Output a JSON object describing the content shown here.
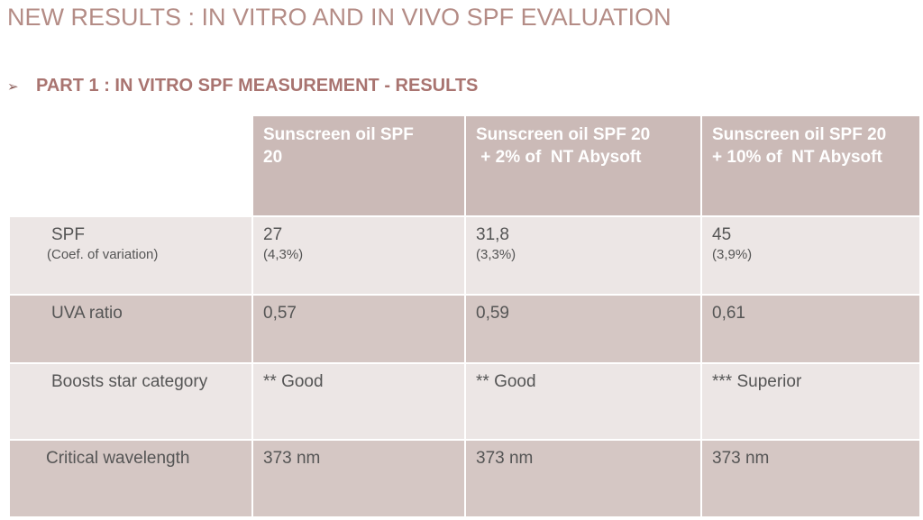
{
  "slide": {
    "title": "NEW RESULTS : IN VITRO AND IN VIVO SPF EVALUATION",
    "subtitle_bullet": "➢",
    "subtitle": "PART 1 : IN VITRO SPF MEASUREMENT - RESULTS"
  },
  "table": {
    "columns": [
      {
        "header_line1": "Sunscreen oil SPF",
        "header_line2": "20"
      },
      {
        "header_line1": "Sunscreen oil SPF 20",
        "header_line2": " + 2% of  NT Abysoft"
      },
      {
        "header_line1": "Sunscreen oil SPF 20",
        "header_line2": "+ 10% of  NT Abysoft"
      }
    ],
    "rows": [
      {
        "label": "SPF",
        "sublabel": "(Coef. of variation)",
        "values": [
          {
            "main": "27",
            "sub": "(4,3%)"
          },
          {
            "main": "31,8",
            "sub": "(3,3%)"
          },
          {
            "main": "45",
            "sub": "(3,9%)"
          }
        ]
      },
      {
        "label": "UVA ratio",
        "values": [
          {
            "main": "0,57"
          },
          {
            "main": "0,59"
          },
          {
            "main": "0,61"
          }
        ]
      },
      {
        "label": "Boosts star category",
        "values": [
          {
            "main": "** Good"
          },
          {
            "main": "** Good"
          },
          {
            "main": "*** Superior"
          }
        ]
      },
      {
        "label": "Critical wavelength",
        "values": [
          {
            "main": "373 nm"
          },
          {
            "main": "373 nm"
          },
          {
            "main": "373 nm"
          }
        ]
      }
    ]
  },
  "colors": {
    "title": "#b48c86",
    "subtitle": "#a97470",
    "header_bg": "#cbbab7",
    "row_light": "#ece6e5",
    "row_dark": "#d5c7c4",
    "body_text": "#555555"
  }
}
